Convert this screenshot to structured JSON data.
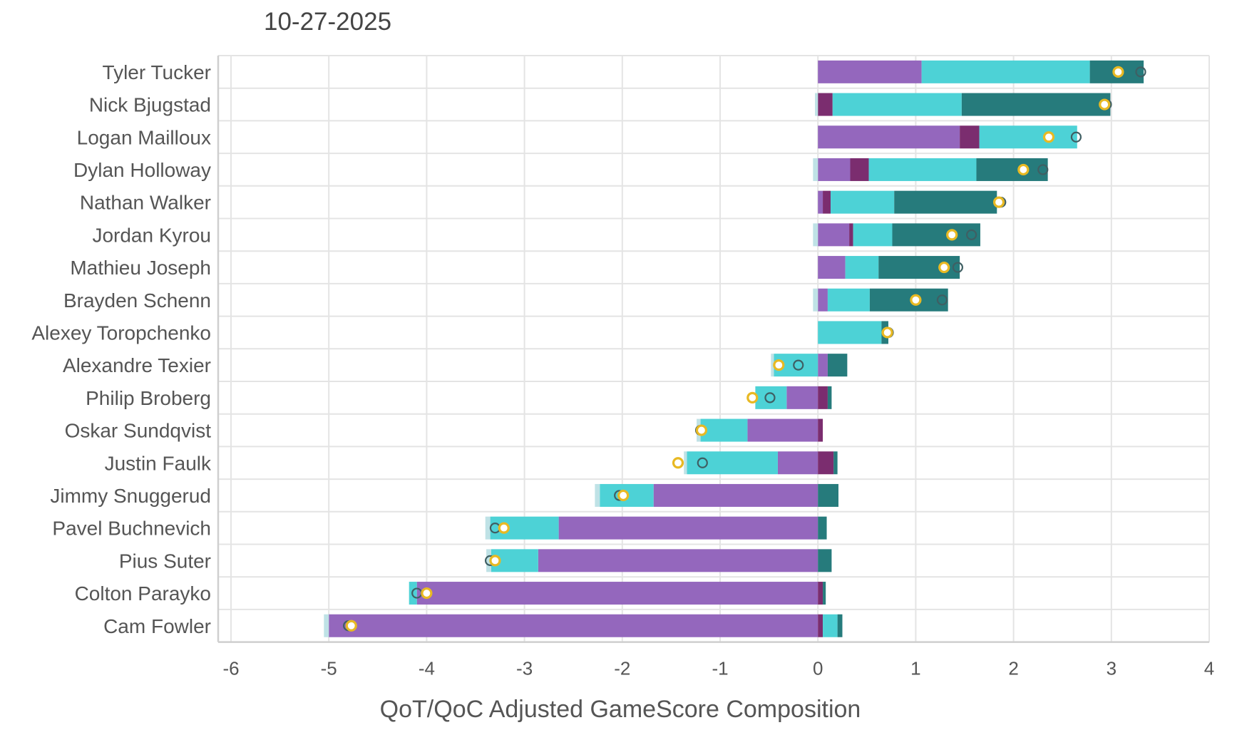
{
  "header": {
    "date": "10-27-2025"
  },
  "chart_data": {
    "type": "bar",
    "orientation": "horizontal",
    "stacked": true,
    "title": "10-27-2025",
    "xlabel": "QoT/QoC Adjusted GameScore Composition",
    "ylabel": "",
    "xlim": [
      -6,
      4
    ],
    "xticks": [
      -6,
      -5,
      -4,
      -3,
      -2,
      -1,
      0,
      1,
      2,
      3,
      4
    ],
    "grid": true,
    "legend": "none",
    "categories": [
      "Tyler Tucker",
      "Nick Bjugstad",
      "Logan Mailloux",
      "Dylan Holloway",
      "Nathan Walker",
      "Jordan Kyrou",
      "Mathieu Joseph",
      "Brayden Schenn",
      "Alexey Toropchenko",
      "Alexandre Texier",
      "Philip Broberg",
      "Oskar Sundqvist",
      "Justin Faulk",
      "Jimmy Snuggerud",
      "Pavel Buchnevich",
      "Pius Suter",
      "Colton Parayko",
      "Cam Fowler"
    ],
    "series": [
      {
        "name": "purple",
        "color": "#9467bd",
        "values": [
          1.06,
          0,
          1.45,
          0.33,
          0.05,
          0.32,
          0.28,
          0.1,
          0,
          0.1,
          -0.32,
          -0.72,
          -0.41,
          -1.68,
          -2.65,
          -2.86,
          -4.1,
          -5.0
        ]
      },
      {
        "name": "dark-purple",
        "color": "#7b2d6f",
        "values": [
          0,
          0.15,
          0.2,
          0.19,
          0.08,
          0.04,
          0,
          0,
          0,
          0,
          0.1,
          0.05,
          0.16,
          0,
          0,
          0,
          0.05,
          0.05
        ]
      },
      {
        "name": "cyan",
        "color": "#4dd2d6",
        "values": [
          1.72,
          1.32,
          1.0,
          1.1,
          0.65,
          0.4,
          0.34,
          0.43,
          0.65,
          -0.45,
          -0.32,
          -0.48,
          -0.93,
          -0.55,
          -0.7,
          -0.48,
          -0.08,
          0.15
        ]
      },
      {
        "name": "teal",
        "color": "#267b7c",
        "values": [
          0.55,
          1.52,
          0,
          0.73,
          1.05,
          0.9,
          0.83,
          0.8,
          0.07,
          0.2,
          0.04,
          0,
          0.04,
          0.21,
          0.09,
          0.14,
          0.03,
          0.05
        ]
      },
      {
        "name": "light",
        "color": "#bfe2e6",
        "values": [
          0,
          -0.03,
          0,
          -0.05,
          0,
          -0.05,
          0,
          -0.05,
          0,
          -0.03,
          0,
          -0.04,
          -0.03,
          -0.05,
          -0.05,
          -0.05,
          0,
          -0.05
        ]
      }
    ],
    "markers": [
      {
        "name": "hollow-dark-circle",
        "color": "#3f5f63",
        "values": [
          3.3,
          2.95,
          2.64,
          2.3,
          1.87,
          1.57,
          1.43,
          1.27,
          0.72,
          -0.2,
          -0.49,
          -1.2,
          -1.18,
          -2.03,
          -3.3,
          -3.35,
          -4.1,
          -4.8
        ]
      },
      {
        "name": "yellow-circle",
        "color": "#e8b923",
        "values": [
          3.07,
          2.93,
          2.36,
          2.1,
          1.85,
          1.37,
          1.29,
          1.0,
          0.71,
          -0.4,
          -0.67,
          -1.19,
          -1.43,
          -1.99,
          -3.21,
          -3.3,
          -4.0,
          -4.77
        ]
      }
    ]
  }
}
